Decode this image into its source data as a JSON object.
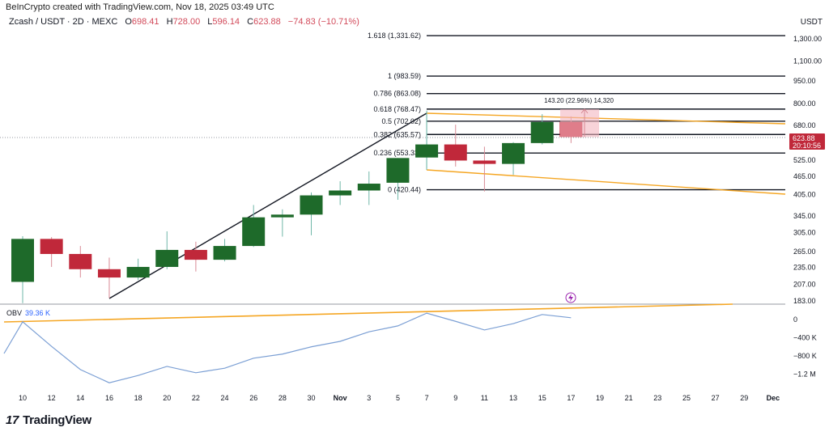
{
  "header": {
    "credit": "BeInCrypto created with TradingView.com, Nov 18, 2025 03:49 UTC",
    "symbol": "Zcash / USDT · 2D · MEXC",
    "open_label": "O",
    "open": "698.41",
    "high_label": "H",
    "high": "728.00",
    "low_label": "L",
    "low": "596.14",
    "close_label": "C",
    "close": "623.88",
    "change": "−74.83 (−10.71%)"
  },
  "price_axis": {
    "currency": "USDT",
    "ticks": [
      1300,
      1100,
      950,
      800,
      680,
      525,
      465,
      405,
      345,
      305,
      265,
      235,
      207,
      183
    ],
    "tick_labels": [
      "1,300.00",
      "1,100.00",
      "950.00",
      "800.00",
      "680.00",
      "525.00",
      "465.00",
      "405.00",
      "345.00",
      "305.00",
      "265.00",
      "235.00",
      "207.00",
      "183.00"
    ],
    "scale": "log",
    "last_price": "623.88",
    "countdown": "20:10:56",
    "last_price_value": 623.88
  },
  "time_axis": {
    "labels": [
      "10",
      "12",
      "14",
      "16",
      "18",
      "20",
      "22",
      "24",
      "26",
      "28",
      "30",
      "Nov",
      "3",
      "5",
      "7",
      "9",
      "11",
      "13",
      "15",
      "17",
      "19",
      "21",
      "23",
      "25",
      "27",
      "29",
      "Dec"
    ]
  },
  "colors": {
    "up": "#1e6a2a",
    "down": "#c0283a",
    "fib": "#131722",
    "channel": "#f5a623",
    "obv_line": "#7b9fd4",
    "last_price": "#c0283a",
    "event": "#9c27b0"
  },
  "chart_data": {
    "type": "candlestick",
    "candles": [
      {
        "date": "Oct 10",
        "o": 211,
        "h": 297,
        "l": 180,
        "c": 291
      },
      {
        "date": "Oct 12",
        "o": 291,
        "h": 295,
        "l": 236,
        "c": 260
      },
      {
        "date": "Oct 14",
        "o": 260,
        "h": 276,
        "l": 218,
        "c": 232
      },
      {
        "date": "Oct 16",
        "o": 232,
        "h": 253,
        "l": 187,
        "c": 218
      },
      {
        "date": "Oct 18",
        "o": 218,
        "h": 251,
        "l": 214,
        "c": 236
      },
      {
        "date": "Oct 20",
        "o": 236,
        "h": 308,
        "l": 232,
        "c": 268
      },
      {
        "date": "Oct 22",
        "o": 268,
        "h": 285,
        "l": 228,
        "c": 249
      },
      {
        "date": "Oct 24",
        "o": 249,
        "h": 291,
        "l": 246,
        "c": 276
      },
      {
        "date": "Oct 26",
        "o": 276,
        "h": 375,
        "l": 274,
        "c": 342
      },
      {
        "date": "Oct 28",
        "o": 342,
        "h": 363,
        "l": 296,
        "c": 349
      },
      {
        "date": "Oct 30",
        "o": 349,
        "h": 412,
        "l": 299,
        "c": 403
      },
      {
        "date": "Nov 1",
        "o": 403,
        "h": 448,
        "l": 375,
        "c": 418
      },
      {
        "date": "Nov 3",
        "o": 418,
        "h": 482,
        "l": 375,
        "c": 440
      },
      {
        "date": "Nov 5",
        "o": 443,
        "h": 533,
        "l": 390,
        "c": 533
      },
      {
        "date": "Nov 7",
        "o": 535,
        "h": 760,
        "l": 493,
        "c": 590
      },
      {
        "date": "Nov 9",
        "o": 590,
        "h": 684,
        "l": 500,
        "c": 523
      },
      {
        "date": "Nov 11",
        "o": 523,
        "h": 580,
        "l": 415,
        "c": 510
      },
      {
        "date": "Nov 13",
        "o": 510,
        "h": 600,
        "l": 470,
        "c": 596
      },
      {
        "date": "Nov 15",
        "o": 596,
        "h": 740,
        "l": 590,
        "c": 698
      },
      {
        "date": "Nov 17",
        "o": 698.41,
        "h": 728,
        "l": 596.14,
        "c": 623.88
      }
    ],
    "fib_levels": [
      {
        "label": "1.618 (1,331.62)",
        "price": 1331.62
      },
      {
        "label": "1 (983.59)",
        "price": 983.59
      },
      {
        "label": "0.786 (863.08)",
        "price": 863.08
      },
      {
        "label": "0.618 (768.47)",
        "price": 768.47
      },
      {
        "label": "0.5 (702.02)",
        "price": 702.02
      },
      {
        "label": "0.382 (635.57)",
        "price": 635.57
      },
      {
        "label": "0.236 (553.33)",
        "price": 553.33
      },
      {
        "label": "0 (420.44)",
        "price": 420.44
      }
    ],
    "measure_label": "143.20 (22.96%) 14,320",
    "obv": {
      "label": "OBV",
      "value_label": "39.36 K",
      "ticks": [
        0,
        -400000,
        -800000,
        -1200000
      ],
      "tick_labels": [
        "0",
        "−400 K",
        "−800 K",
        "−1.2 M"
      ],
      "values": [
        -50000,
        -590000,
        -1100000,
        -1390000,
        -1230000,
        -1030000,
        -1170000,
        -1070000,
        -850000,
        -760000,
        -600000,
        -480000,
        -270000,
        -140000,
        140000,
        -40000,
        -230000,
        -90000,
        110000,
        39360
      ]
    }
  },
  "footer": {
    "logo_text": "TradingView"
  }
}
